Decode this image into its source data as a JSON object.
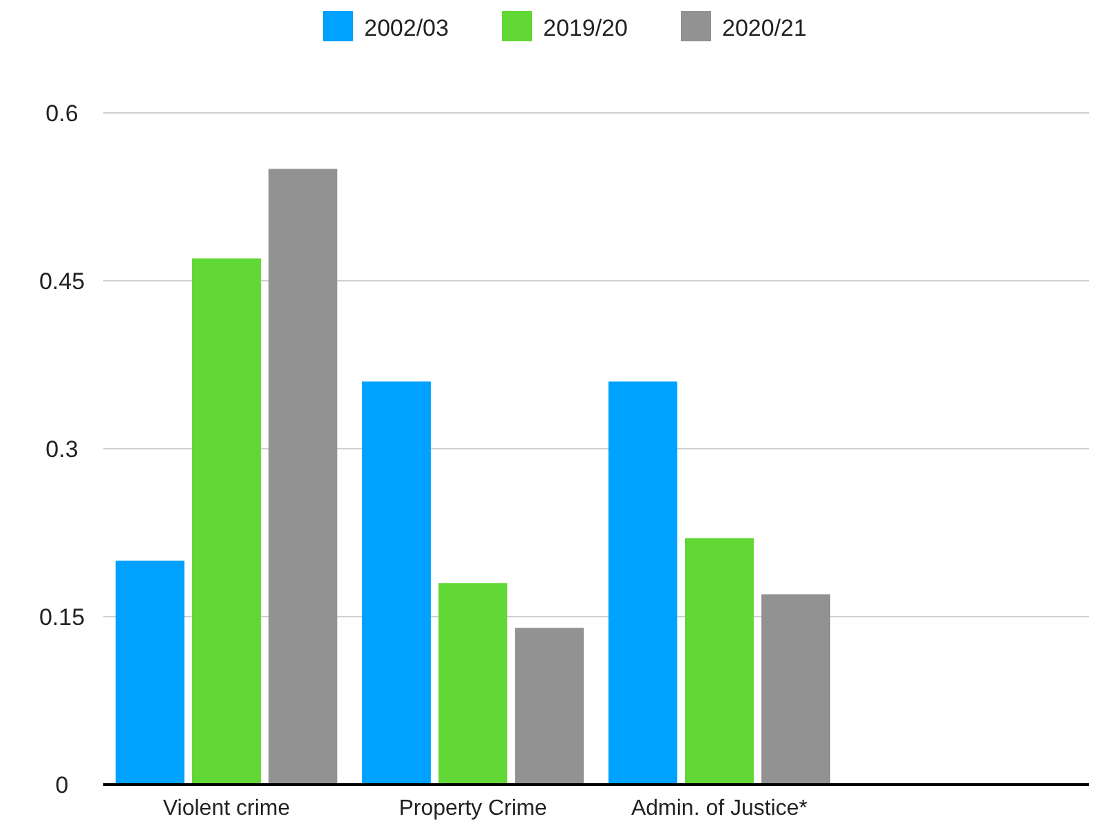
{
  "chart_data": {
    "type": "bar",
    "categories": [
      "Violent crime",
      "Property Crime",
      "Admin. of Justice*",
      null
    ],
    "series": [
      {
        "name": "2002/03",
        "color": "#00a2ff",
        "values": [
          0.2,
          0.36,
          0.36,
          null
        ]
      },
      {
        "name": "2019/20",
        "color": "#61d836",
        "values": [
          0.47,
          0.18,
          0.22,
          null
        ]
      },
      {
        "name": "2020/21",
        "color": "#929292",
        "values": [
          0.55,
          0.14,
          0.17,
          null
        ]
      }
    ],
    "ylim": [
      0,
      0.6
    ],
    "yticks": [
      0,
      0.15,
      0.3,
      0.45,
      0.6
    ],
    "grid": "y",
    "legend": "top"
  }
}
